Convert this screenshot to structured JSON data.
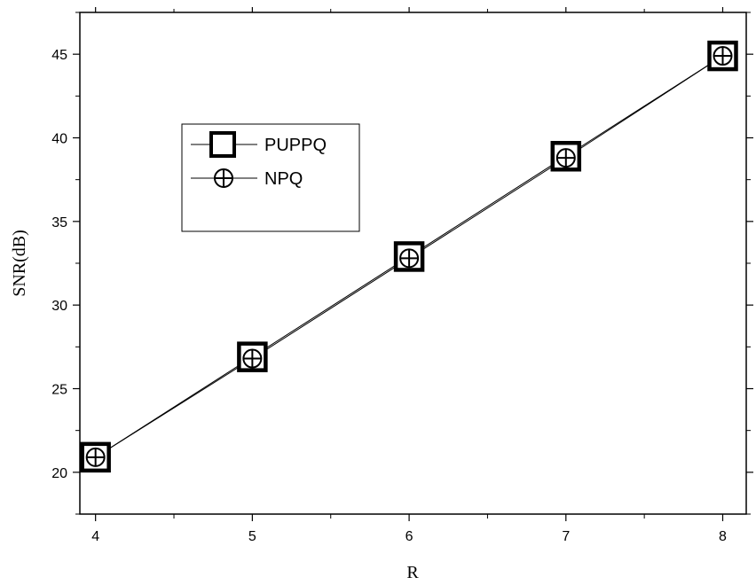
{
  "chart_data": {
    "type": "line",
    "title": "",
    "xlabel": "R",
    "ylabel": "SNR(dB)",
    "x": [
      4,
      5,
      6,
      7,
      8
    ],
    "xticks": [
      4,
      5,
      6,
      7,
      8
    ],
    "yticks": [
      20,
      25,
      30,
      35,
      40,
      45
    ],
    "xlim": [
      3.9,
      8.15
    ],
    "ylim": [
      17.5,
      47.5
    ],
    "grid": false,
    "legend_position": "upper-left",
    "series": [
      {
        "name": "PUPPQ",
        "marker": "square",
        "values": [
          20.9,
          26.9,
          32.9,
          38.9,
          44.9
        ]
      },
      {
        "name": "NPQ",
        "marker": "circled-plus",
        "values": [
          20.9,
          26.8,
          32.8,
          38.8,
          44.9
        ]
      }
    ],
    "line_color": "#000000"
  }
}
